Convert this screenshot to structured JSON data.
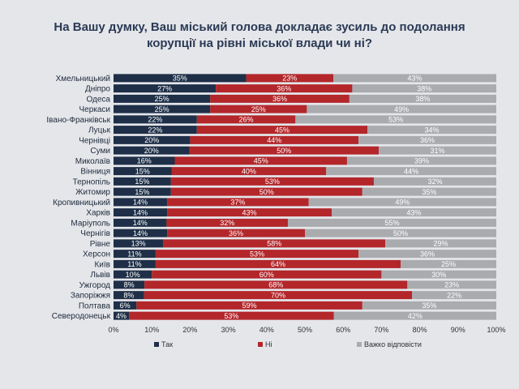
{
  "title": {
    "line1": "На Вашу думку, Ваш міський голова докладає зусиль до подолання",
    "line2": "корупції на рівні міської влади чи ні?"
  },
  "colors": {
    "yes": "#1e2f47",
    "no": "#b3262a",
    "hard": "#a9abaf"
  },
  "chart_data": {
    "type": "bar",
    "orientation": "horizontal",
    "stacked": "percent",
    "categories": [
      "Хмельницький",
      "Дніпро",
      "Одеса",
      "Черкаси",
      "Івано-Франківськ",
      "Луцьк",
      "Чернівці",
      "Суми",
      "Миколаїв",
      "Вінниця",
      "Тернопіль",
      "Житомир",
      "Кропивницький",
      "Харків",
      "Маріуполь",
      "Чернігів",
      "Рівне",
      "Херсон",
      "Київ",
      "Львів",
      "Ужгород",
      "Запоріжжя",
      "Полтава",
      "Северодонецьк"
    ],
    "series": [
      {
        "name": "Так",
        "values": [
          35,
          27,
          25,
          25,
          22,
          22,
          20,
          20,
          16,
          15,
          15,
          15,
          14,
          14,
          14,
          14,
          13,
          11,
          11,
          10,
          8,
          8,
          6,
          4
        ]
      },
      {
        "name": "Ні",
        "values": [
          23,
          36,
          36,
          25,
          26,
          45,
          44,
          50,
          45,
          40,
          53,
          50,
          37,
          43,
          32,
          36,
          58,
          53,
          64,
          60,
          68,
          70,
          59,
          53
        ]
      },
      {
        "name": "Важко відповісти",
        "values": [
          43,
          38,
          38,
          49,
          53,
          34,
          36,
          31,
          39,
          44,
          32,
          35,
          49,
          43,
          55,
          50,
          29,
          36,
          25,
          30,
          23,
          22,
          35,
          42
        ]
      }
    ],
    "xlim": [
      0,
      100
    ],
    "ticks": [
      "0%",
      "10%",
      "20%",
      "30%",
      "40%",
      "50%",
      "60%",
      "70%",
      "80%",
      "90%",
      "100%"
    ],
    "legend_position": "bottom"
  }
}
